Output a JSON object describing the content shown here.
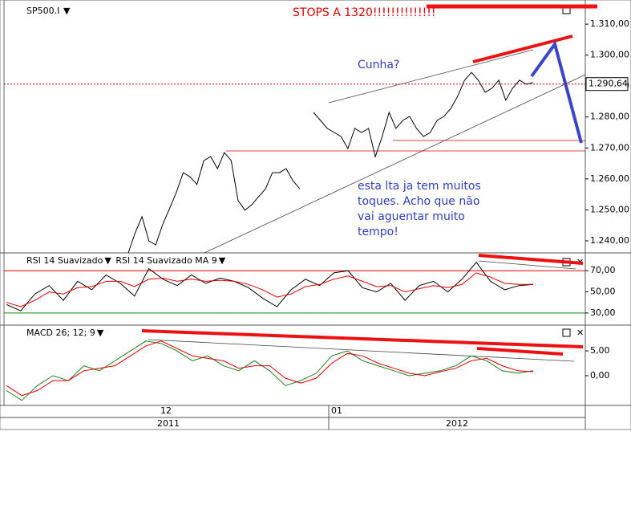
{
  "chart_data": [
    {
      "type": "line",
      "title": "SP500.I",
      "categories": [
        null,
        null,
        null,
        null,
        null,
        null,
        null,
        null,
        null,
        null,
        null,
        null,
        null,
        null,
        null,
        null,
        null,
        null,
        null,
        null,
        null,
        null,
        null,
        null,
        null,
        null,
        null,
        null,
        null,
        null,
        null,
        null,
        null,
        null,
        null,
        null,
        null,
        null,
        null,
        null,
        null,
        null,
        null,
        null,
        null,
        null,
        null,
        null,
        null,
        null,
        null,
        null,
        null,
        null,
        null,
        null,
        null,
        null,
        null,
        null
      ],
      "series": [
        {
          "color": "#000000",
          "values": [
            1236.1,
            1242.6,
            1247.8,
            1240.0,
            1238.7,
            1245.2,
            1250.4,
            1255.6,
            1262.0,
            1260.7,
            1258.2,
            1265.9,
            1267.2,
            1263.3,
            1268.5,
            1265.9,
            1253.0,
            1249.9,
            1251.7,
            1254.3,
            1256.8,
            1262.0,
            1262.0,
            1263.3,
            1259.4,
            1256.8,
            null,
            1281.5,
            1278.9,
            1276.3,
            1275.0,
            1273.7,
            1269.8,
            1276.3,
            1275.0,
            1276.3,
            1267.2,
            1273.7,
            1281.5,
            1276.3,
            1278.9,
            1280.2,
            1276.3,
            1273.7,
            1275.0,
            1278.9,
            1280.2,
            1282.8,
            1286.7,
            1291.9,
            1294.4,
            1291.9,
            1288.0,
            1289.3,
            1291.9,
            1285.4,
            1289.3,
            1291.9,
            1290.6,
            1291.1
          ]
        }
      ],
      "last_price": {
        "value": 1290.64,
        "label": "1.290,64"
      },
      "ylim": [
        1236.1,
        1317.8
      ],
      "yticks": [
        {
          "value": 1240,
          "label": "1.240,00"
        },
        {
          "value": 1250,
          "label": "1.250,00"
        },
        {
          "value": 1260,
          "label": "1.260,00"
        },
        {
          "value": 1270,
          "label": "1.270,00"
        },
        {
          "value": 1280,
          "label": "1.280,00"
        },
        {
          "value": 1290,
          "label": "1.290,00"
        },
        {
          "value": 1300,
          "label": "1.300,00"
        },
        {
          "value": 1310,
          "label": "1.310,00"
        }
      ]
    },
    {
      "type": "line",
      "categories": [
        null,
        null,
        null,
        null,
        null,
        null,
        null,
        null,
        null,
        null,
        null,
        null,
        null,
        null,
        null,
        null,
        null,
        null,
        null,
        null,
        null,
        null,
        null,
        null,
        null,
        null,
        null,
        null,
        null,
        null,
        null,
        null,
        null,
        null,
        null,
        null,
        null,
        null
      ],
      "series": [
        {
          "name": "RSI 14 Suavizado",
          "color": "#000000",
          "values": [
            38,
            32,
            48,
            56,
            42,
            60,
            52,
            66,
            58,
            46,
            72,
            62,
            56,
            66,
            58,
            63,
            60,
            54,
            44,
            36,
            52,
            62,
            56,
            68,
            70,
            54,
            50,
            58,
            42,
            56,
            60,
            50,
            62,
            78,
            60,
            52,
            56,
            57
          ]
        },
        {
          "name": "RSI 14 Suavizado MA 9",
          "color": "#e00000",
          "values": [
            40,
            36,
            42,
            50,
            48,
            54,
            55,
            60,
            60,
            55,
            62,
            63,
            60,
            62,
            60,
            61,
            60,
            57,
            52,
            45,
            48,
            55,
            57,
            62,
            65,
            60,
            55,
            56,
            50,
            53,
            56,
            54,
            57,
            68,
            64,
            58,
            57,
            57
          ]
        }
      ],
      "ylim": [
        18.5,
        86.9
      ],
      "yticks": [
        {
          "value": 30,
          "label": "30,00"
        },
        {
          "value": 50,
          "label": "50,00"
        },
        {
          "value": 70,
          "label": "70,00"
        }
      ],
      "levels": [
        70,
        30
      ],
      "level_colors": [
        "#e00000",
        "#009000"
      ]
    },
    {
      "type": "line",
      "categories": [
        null,
        null,
        null,
        null,
        null,
        null,
        null,
        null,
        null,
        null,
        null,
        null,
        null,
        null,
        null,
        null,
        null,
        null,
        null,
        null,
        null,
        null,
        null,
        null,
        null,
        null,
        null,
        null,
        null,
        null,
        null,
        null,
        null,
        null,
        null
      ],
      "series": [
        {
          "name": "MACD 26; 12; 9",
          "color": "#208020",
          "values": [
            -3,
            -5,
            -2,
            0,
            -1,
            2,
            1,
            3,
            5,
            7,
            6.5,
            5,
            3,
            4,
            2,
            1,
            3,
            1,
            -2,
            -1,
            0.5,
            4,
            5,
            3,
            2,
            1,
            0,
            0.5,
            1,
            2,
            4,
            3,
            1,
            0.5,
            1
          ]
        },
        {
          "color": "#e00000",
          "values": [
            -2,
            -4,
            -3,
            -1,
            -1,
            1,
            1.5,
            2,
            4,
            6,
            7,
            5.5,
            4,
            3.5,
            3,
            1.5,
            2,
            2,
            -0.5,
            -1.5,
            -0.5,
            2.5,
            4.5,
            4,
            2.5,
            1.5,
            0.5,
            0,
            0.8,
            1.5,
            3,
            3.5,
            2,
            1,
            0.8
          ]
        }
      ],
      "ylim": [
        -6.0,
        10.2
      ],
      "yticks": [
        {
          "value": 0,
          "label": "0,00"
        },
        {
          "value": 5,
          "label": "5,00"
        }
      ]
    }
  ],
  "annotations": {
    "stops": "STOPS A 1320!!!!!!!!!!!!!!",
    "wedge": "Cunha?",
    "comment": [
      "esta lta ja tem muitos",
      "toques. Acho que não",
      "vai aguentar muito",
      "tempo!"
    ]
  },
  "time_axis": {
    "months": [
      "12",
      "01"
    ],
    "years": [
      "2011",
      "2012"
    ]
  }
}
